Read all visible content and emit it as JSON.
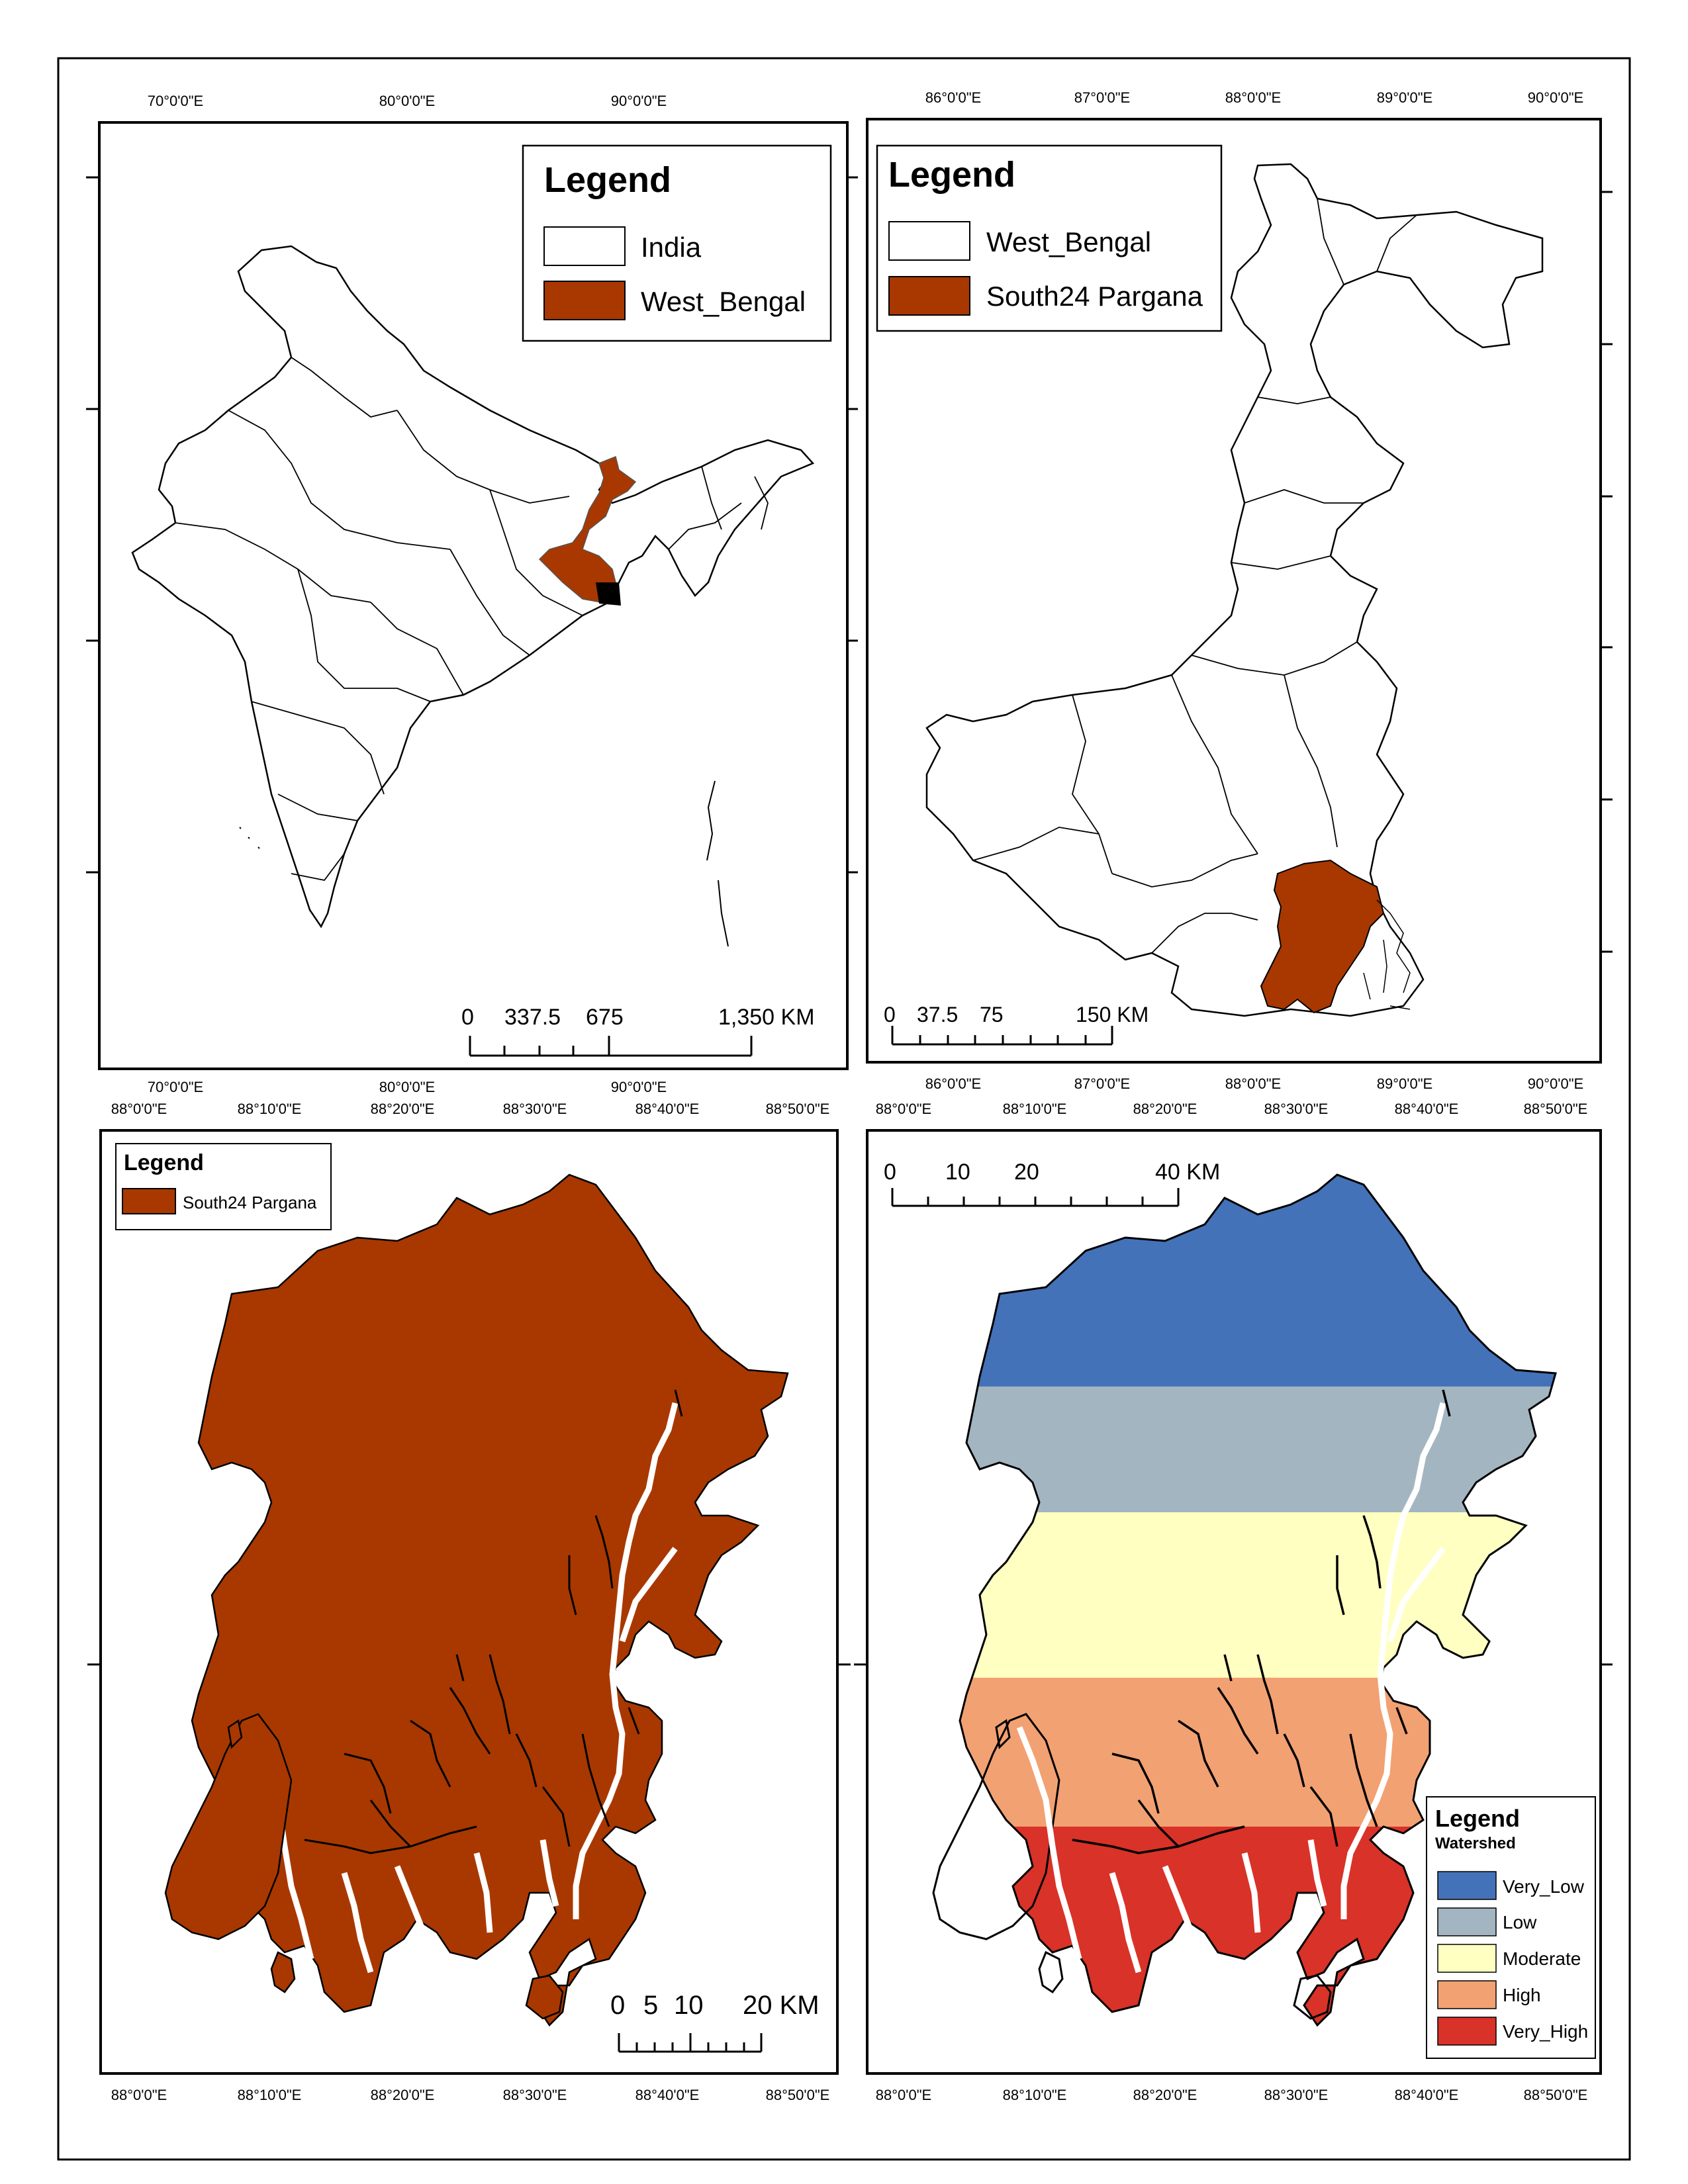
{
  "colors": {
    "west_bengal_fill": "#A83800",
    "south24_fill": "#A83800",
    "very_low": "#4472B8",
    "low": "#A3B5C0",
    "moderate": "#FFFFC2",
    "high": "#F2A173",
    "very_high": "#D93228"
  },
  "panels": [
    {
      "id": "india",
      "top_ticks": [
        "70°0'0\"E",
        "80°0'0\"E",
        "90°0'0\"E"
      ],
      "bottom_ticks": [
        "70°0'0\"E",
        "80°0'0\"E",
        "90°0'0\"E"
      ],
      "legend": {
        "title": "Legend",
        "items": [
          "India",
          "West_Bengal"
        ]
      },
      "scale": {
        "labels": [
          "0",
          "337.5",
          "675",
          "1,350 KM"
        ]
      }
    },
    {
      "id": "west-bengal",
      "top_ticks": [
        "86°0'0\"E",
        "87°0'0\"E",
        "88°0'0\"E",
        "89°0'0\"E",
        "90°0'0\"E"
      ],
      "bottom_ticks": [
        "86°0'0\"E",
        "87°0'0\"E",
        "88°0'0\"E",
        "89°0'0\"E",
        "90°0'0\"E"
      ],
      "legend": {
        "title": "Legend",
        "items": [
          "West_Bengal",
          "South24 Pargana"
        ]
      },
      "scale": {
        "labels": [
          "0",
          "37.5",
          "75",
          "150 KM"
        ]
      }
    },
    {
      "id": "south24",
      "top_ticks": [
        "88°0'0\"E",
        "88°10'0\"E",
        "88°20'0\"E",
        "88°30'0\"E",
        "88°40'0\"E",
        "88°50'0\"E"
      ],
      "bottom_ticks": [
        "88°0'0\"E",
        "88°10'0\"E",
        "88°20'0\"E",
        "88°30'0\"E",
        "88°40'0\"E",
        "88°50'0\"E"
      ],
      "legend": {
        "title": "Legend",
        "items": [
          "South24 Pargana"
        ]
      },
      "scale": {
        "labels": [
          "0",
          "5",
          "10",
          "20 KM"
        ]
      }
    },
    {
      "id": "watershed",
      "top_ticks": [
        "88°0'0\"E",
        "88°10'0\"E",
        "88°20'0\"E",
        "88°30'0\"E",
        "88°40'0\"E",
        "88°50'0\"E"
      ],
      "bottom_ticks": [
        "88°0'0\"E",
        "88°10'0\"E",
        "88°20'0\"E",
        "88°30'0\"E",
        "88°40'0\"E",
        "88°50'0\"E"
      ],
      "legend": {
        "title": "Legend",
        "subtitle": "Watershed",
        "items": [
          "Very_Low",
          "Low",
          "Moderate",
          "High",
          "Very_High"
        ]
      },
      "scale": {
        "labels": [
          "0",
          "10",
          "20",
          "40 KM"
        ]
      }
    }
  ]
}
